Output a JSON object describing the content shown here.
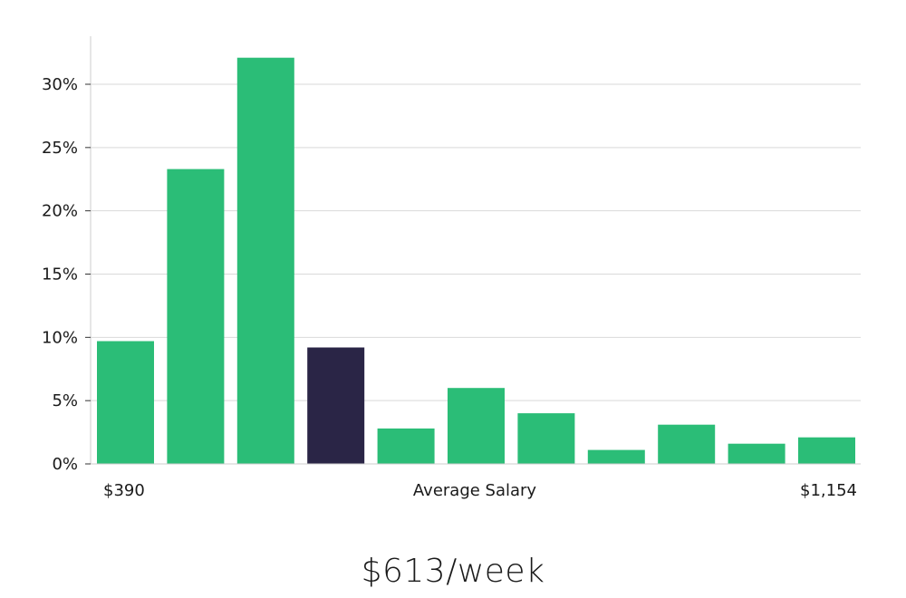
{
  "colors": {
    "bar": "#2bbd77",
    "highlight": "#2a2546",
    "grid": "#d9d9d9",
    "axis": "#cccccc"
  },
  "chart_data": {
    "type": "bar",
    "values": [
      9.7,
      23.3,
      32.1,
      9.2,
      2.8,
      6.0,
      4.0,
      1.1,
      3.1,
      1.6,
      2.1
    ],
    "highlight_index": 3,
    "ylim": [
      0,
      30
    ],
    "yticks": [
      0,
      5,
      10,
      15,
      20,
      25,
      30
    ],
    "ytick_labels": [
      "0%",
      "5%",
      "10%",
      "15%",
      "20%",
      "25%",
      "30%"
    ],
    "grid": true,
    "x_min_label": "$390",
    "x_center_label": "Average Salary",
    "x_max_label": "$1,154"
  },
  "salary": {
    "text": "$613/week"
  }
}
